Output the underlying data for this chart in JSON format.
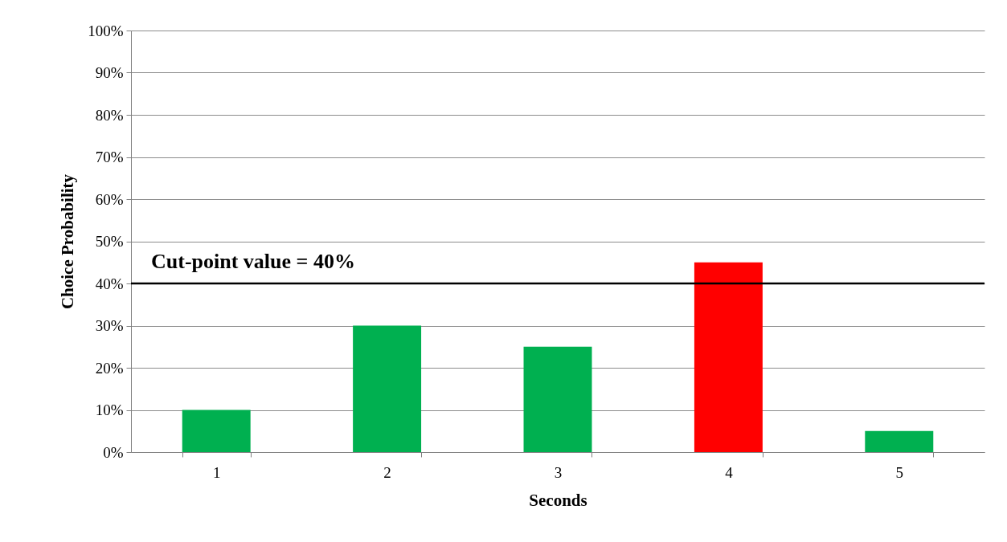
{
  "chart_data": {
    "type": "bar",
    "xlabel": "Seconds",
    "ylabel": "Choice Probability",
    "categories": [
      "1",
      "2",
      "3",
      "4",
      "5"
    ],
    "values": [
      10,
      30,
      25,
      45,
      5
    ],
    "colors": [
      "#00b050",
      "#00b050",
      "#00b050",
      "#ff0000",
      "#00b050"
    ],
    "ylim": [
      0,
      100
    ],
    "yticks": [
      {
        "value": 0,
        "label": "0%"
      },
      {
        "value": 10,
        "label": "10%"
      },
      {
        "value": 20,
        "label": "20%"
      },
      {
        "value": 30,
        "label": "30%"
      },
      {
        "value": 40,
        "label": "40%"
      },
      {
        "value": 50,
        "label": "50%"
      },
      {
        "value": 60,
        "label": "60%"
      },
      {
        "value": 70,
        "label": "70%"
      },
      {
        "value": 80,
        "label": "80%"
      },
      {
        "value": 90,
        "label": "90%"
      },
      {
        "value": 100,
        "label": "100%"
      }
    ],
    "grid": "y",
    "ref_lines": [
      {
        "axis": "y",
        "value": 40,
        "label": "Cut-point value = 40%",
        "color": "#000000"
      }
    ]
  }
}
